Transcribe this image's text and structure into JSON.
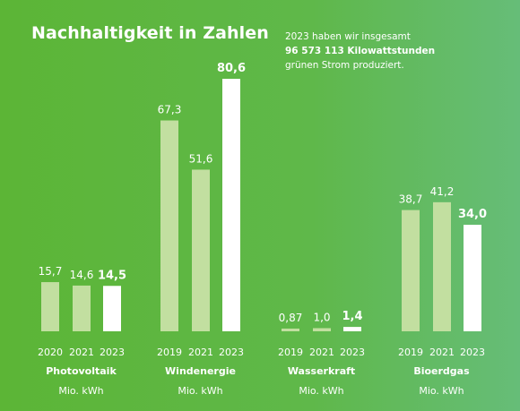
{
  "title": "Nachhaltigkeit in Zahlen",
  "note": {
    "line1": "2023 haben wir insgesamt",
    "line2": "96 573 113 Kilowattstunden",
    "line3": "grünen Strom produziert."
  },
  "colors": {
    "background_start": "#5cb536",
    "background_end": "#66bd78",
    "bar_past": "#c2dfa0",
    "bar_current": "#ffffff",
    "text": "#ffffff"
  },
  "chart_data": {
    "type": "bar",
    "ylim": [
      0,
      90
    ],
    "grid": false,
    "groups": [
      {
        "name": "Photovoltaik",
        "unit": "Mio. kWh",
        "categories": [
          "2020",
          "2021",
          "2023"
        ],
        "values": [
          15.7,
          14.6,
          14.5
        ],
        "labels": [
          "15,7",
          "14,6",
          "14,5"
        ]
      },
      {
        "name": "Windenergie",
        "unit": "Mio. kWh",
        "categories": [
          "2019",
          "2021",
          "2023"
        ],
        "values": [
          67.3,
          51.6,
          80.6
        ],
        "labels": [
          "67,3",
          "51,6",
          "80,6"
        ]
      },
      {
        "name": "Wasserkraft",
        "unit": "Mio. kWh",
        "categories": [
          "2019",
          "2021",
          "2023"
        ],
        "values": [
          0.87,
          1.0,
          1.4
        ],
        "labels": [
          "0,87",
          "1,0",
          "1,4"
        ]
      },
      {
        "name": "Bioerdgas",
        "unit": "Mio. kWh",
        "categories": [
          "2019",
          "2021",
          "2023"
        ],
        "values": [
          38.7,
          41.2,
          34.0
        ],
        "labels": [
          "38,7",
          "41,2",
          "34,0"
        ]
      }
    ]
  }
}
